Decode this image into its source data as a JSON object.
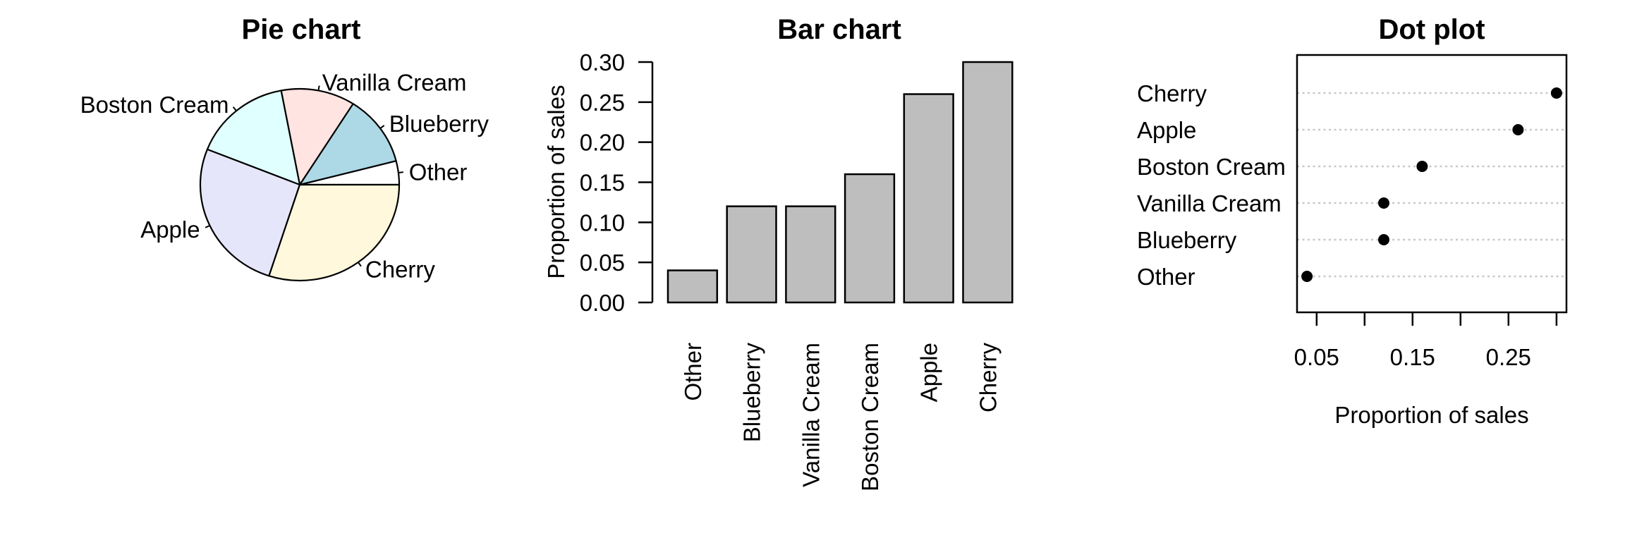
{
  "page": {
    "background_color": "#ffffff",
    "text_color": "#000000"
  },
  "chart_data": [
    {
      "type": "pie",
      "title": "Pie chart",
      "start_angle_deg": 0,
      "direction": "counterclockwise",
      "slices": [
        {
          "label": "Other",
          "value": 0.04,
          "color": "#FFFFFF"
        },
        {
          "label": "Blueberry",
          "value": 0.12,
          "color": "#ADD8E6"
        },
        {
          "label": "Vanilla Cream",
          "value": 0.12,
          "color": "#FFE4E1"
        },
        {
          "label": "Boston Cream",
          "value": 0.16,
          "color": "#E0FFFF"
        },
        {
          "label": "Apple",
          "value": 0.26,
          "color": "#E6E6FA"
        },
        {
          "label": "Cherry",
          "value": 0.3,
          "color": "#FFF8DC"
        }
      ],
      "slice_border_color": "#000000"
    },
    {
      "type": "bar",
      "title": "Bar chart",
      "ylabel": "Proportion of sales",
      "categories": [
        "Other",
        "Blueberry",
        "Vanilla Cream",
        "Boston Cream",
        "Apple",
        "Cherry"
      ],
      "values": [
        0.04,
        0.12,
        0.12,
        0.16,
        0.26,
        0.3
      ],
      "ylim": [
        0.0,
        0.3
      ],
      "yticks": [
        0.0,
        0.05,
        0.1,
        0.15,
        0.2,
        0.25,
        0.3
      ],
      "ytick_labels": [
        "0.00",
        "0.05",
        "0.10",
        "0.15",
        "0.20",
        "0.25",
        "0.30"
      ],
      "bar_fill_color": "#BEBEBE",
      "bar_border_color": "#000000",
      "grid": "off",
      "x_label_rotation_deg": 90
    },
    {
      "type": "dot",
      "title": "Dot plot",
      "xlabel": "Proportion of sales",
      "categories": [
        "Cherry",
        "Apple",
        "Boston Cream",
        "Vanilla Cream",
        "Blueberry",
        "Other"
      ],
      "values": [
        0.3,
        0.26,
        0.16,
        0.12,
        0.12,
        0.04
      ],
      "xlim": [
        0.0296,
        0.3104
      ],
      "xticks": [
        0.05,
        0.1,
        0.15,
        0.2,
        0.25,
        0.3
      ],
      "xtick_labels": [
        "0.05",
        "",
        "0.15",
        "",
        "0.25",
        ""
      ],
      "dot_color": "#000000",
      "gridline_color": "#C8C8C8",
      "gridline_style": "dotted",
      "frame": "box"
    }
  ]
}
